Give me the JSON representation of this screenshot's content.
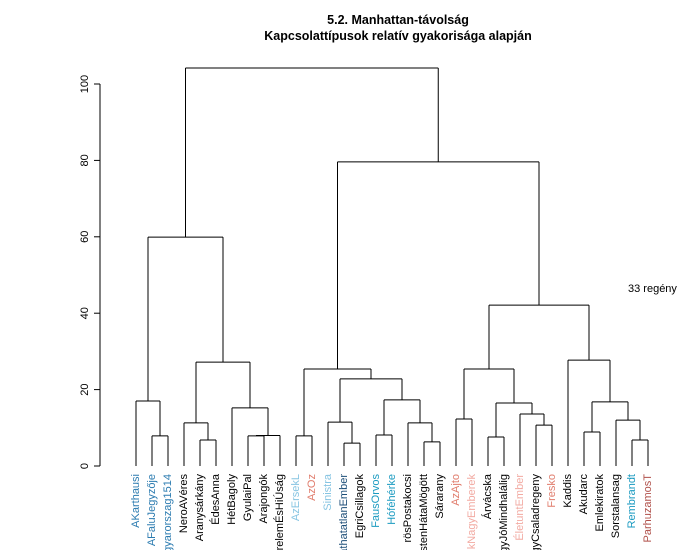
{
  "chart_data": {
    "type": "dendrogram",
    "title": "5.2. Manhattan-távolság",
    "subtitle": "Kapcsolattípusok relatív gyakorisága alapján",
    "annotation": "33 regény",
    "ylim": [
      0,
      100
    ],
    "yticks": [
      0,
      20,
      40,
      60,
      80,
      100
    ],
    "tree": {
      "height": 104.2,
      "children": [
        {
          "height": 59.9,
          "children": [
            {
              "height": 17.0,
              "children": [
                {
                  "label": "AKarthausi",
                  "color": "#2b7bb0"
                },
                {
                  "height": 7.9,
                  "children": [
                    {
                      "label": "AFaluJegyzője",
                      "color": "#2b7bb0"
                    },
                    {
                      "label": "gyarorszag1514",
                      "color": "#2b7bb0"
                    }
                  ]
                }
              ]
            },
            {
              "height": 27.2,
              "children": [
                {
                  "height": 11.3,
                  "children": [
                    {
                      "label": "NeroAVéres",
                      "color": "#000000"
                    },
                    {
                      "height": 6.8,
                      "children": [
                        {
                          "label": "Aranysárkány",
                          "color": "#000000"
                        },
                        {
                          "label": "ÉdesAnna",
                          "color": "#000000"
                        }
                      ]
                    }
                  ]
                },
                {
                  "height": 15.2,
                  "children": [
                    {
                      "label": "HétBagoly",
                      "color": "#000000"
                    },
                    {
                      "height": 8.0,
                      "children": [
                        {
                          "height": 7.9,
                          "children": [
                            {
                              "label": "GyulaiPal",
                              "color": "#000000"
                            },
                            {
                              "label": "Arajongók",
                              "color": "#000000"
                            }
                          ]
                        },
                        {
                          "label": "relemÉsHiÚság",
                          "color": "#000000"
                        }
                      ]
                    }
                  ]
                }
              ]
            }
          ]
        },
        {
          "height": 79.6,
          "children": [
            {
              "height": 25.4,
              "children": [
                {
                  "height": 7.9,
                  "children": [
                    {
                      "label": "AzErsekL",
                      "color": "#86c4e2"
                    },
                    {
                      "label": "AzOz",
                      "color": "#e07c6c"
                    }
                  ]
                },
                {
                  "height": 22.8,
                  "children": [
                    {
                      "height": 11.5,
                      "children": [
                        {
                          "label": "Sinistra",
                          "color": "#86c4e2"
                        },
                        {
                          "height": 6.0,
                          "children": [
                            {
                              "label": "áthatatlanEmber",
                              "color": "#1d4e78"
                            },
                            {
                              "label": "EgriCsillagok",
                              "color": "#000000"
                            }
                          ]
                        }
                      ]
                    },
                    {
                      "height": 17.3,
                      "children": [
                        {
                          "height": 8.1,
                          "children": [
                            {
                              "label": "FausOrvos",
                              "color": "#1a9ac0"
                            },
                            {
                              "label": "Hóféhérke",
                              "color": "#1a9ac0"
                            }
                          ]
                        },
                        {
                          "height": 11.3,
                          "children": [
                            {
                              "label": "rösPostakocsi",
                              "color": "#000000"
                            },
                            {
                              "height": 6.3,
                              "children": [
                                {
                                  "label": "stenHátaMögött",
                                  "color": "#000000"
                                },
                                {
                                  "label": "Sárarany",
                                  "color": "#000000"
                                }
                              ]
                            }
                          ]
                        }
                      ]
                    }
                  ]
                }
              ]
            },
            {
              "height": 42.1,
              "children": [
                {
                  "height": 25.4,
                  "children": [
                    {
                      "height": 12.3,
                      "children": [
                        {
                          "label": "AzAjto",
                          "color": "#e07c6c"
                        },
                        {
                          "label": "kNagyEmberek",
                          "color": "#f2aaa2"
                        }
                      ]
                    },
                    {
                      "height": 16.5,
                      "children": [
                        {
                          "height": 7.6,
                          "children": [
                            {
                              "label": "Árvácska",
                              "color": "#000000"
                            },
                            {
                              "label": "gyJóMindhalálig",
                              "color": "#000000"
                            }
                          ]
                        },
                        {
                          "height": 13.6,
                          "children": [
                            {
                              "label": "ÉletuntEmber",
                              "color": "#f2aaa2"
                            },
                            {
                              "height": 10.7,
                              "children": [
                                {
                                  "label": "gyCsaladregeny",
                                  "color": "#000000"
                                },
                                {
                                  "label": "Fresko",
                                  "color": "#e07c6c"
                                }
                              ]
                            }
                          ]
                        }
                      ]
                    }
                  ]
                },
                {
                  "height": 27.7,
                  "children": [
                    {
                      "label": "Kaddis",
                      "color": "#000000"
                    },
                    {
                      "height": 16.8,
                      "children": [
                        {
                          "height": 8.9,
                          "children": [
                            {
                              "label": "Akudarc",
                              "color": "#000000"
                            },
                            {
                              "label": "Emlekiratok",
                              "color": "#000000"
                            }
                          ]
                        },
                        {
                          "height": 12.0,
                          "children": [
                            {
                              "label": "Sorstalansag",
                              "color": "#000000"
                            },
                            {
                              "height": 6.8,
                              "children": [
                                {
                                  "label": "Rembrandt",
                                  "color": "#1a9ac0"
                                },
                                {
                                  "label": "ParhuzamosT",
                                  "color": "#b0504a"
                                }
                              ]
                            }
                          ]
                        }
                      ]
                    }
                  ]
                }
              ]
            }
          ]
        }
      ]
    }
  }
}
